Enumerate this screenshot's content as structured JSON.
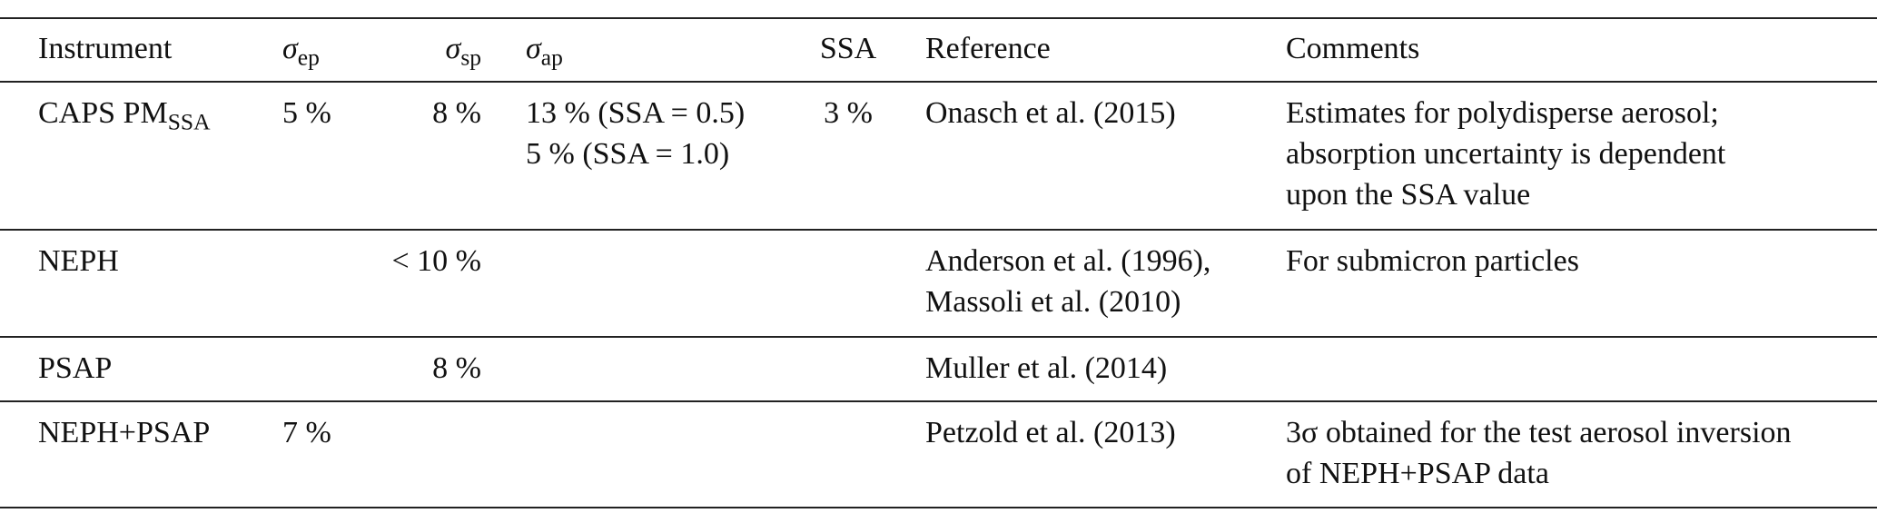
{
  "table": {
    "header": [
      {
        "text": "Instrument"
      },
      {
        "text": "σ",
        "sub": "ep"
      },
      {
        "text": "σ",
        "sub": "sp"
      },
      {
        "text": "σ",
        "sub": "ap"
      },
      {
        "text": "SSA"
      },
      {
        "text": "Reference"
      },
      {
        "text": "Comments"
      }
    ],
    "rows": [
      [
        {
          "text": "CAPS PM",
          "sub": "SSA"
        },
        [
          "5 %"
        ],
        [
          "8 %"
        ],
        [
          "13 % (SSA = 0.5)",
          "5 % (SSA = 1.0)"
        ],
        [
          "3 %"
        ],
        [
          "Onasch et al. (2015)"
        ],
        [
          "Estimates for polydisperse aerosol;",
          "absorption uncertainty is dependent",
          "upon the SSA value"
        ]
      ],
      [
        {
          "text": "NEPH"
        },
        null,
        [
          "< 10 %"
        ],
        null,
        null,
        [
          "Anderson et al. (1996),",
          "Massoli et al. (2010)"
        ],
        [
          "For submicron particles"
        ]
      ],
      [
        {
          "text": "PSAP"
        },
        null,
        [
          "8 %"
        ],
        null,
        null,
        [
          "Muller et al. (2014)"
        ],
        null
      ],
      [
        {
          "text": "NEPH+PSAP"
        },
        [
          "7 %"
        ],
        null,
        null,
        null,
        [
          "Petzold et al. (2013)"
        ],
        [
          "3σ obtained for the test aerosol inversion",
          "of NEPH+PSAP data"
        ]
      ]
    ]
  }
}
